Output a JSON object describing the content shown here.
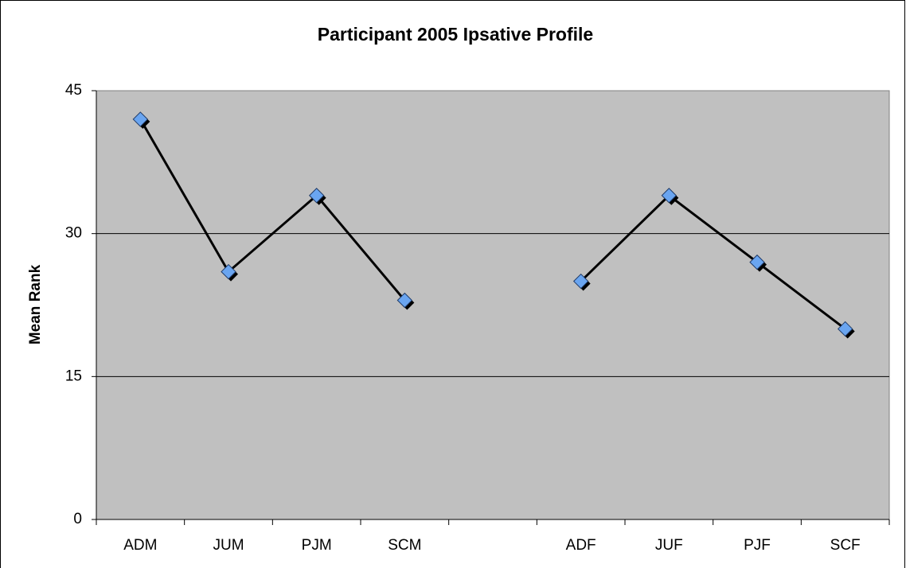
{
  "chart_data": {
    "type": "line",
    "title": "Participant 2005 Ipsative Profile",
    "y_label": "Mean Rank",
    "categories": [
      "ADM",
      "JUM",
      "PJM",
      "SCM",
      null,
      "ADF",
      "JUF",
      "PJF",
      "SCF"
    ],
    "series": [
      {
        "name": "Participant 2005",
        "color": "#6aa5f0",
        "values": [
          42,
          26,
          34,
          23,
          null,
          25,
          34,
          27,
          20
        ]
      }
    ],
    "ylim": [
      0,
      45
    ],
    "yticks": [
      0,
      15,
      30,
      45
    ],
    "grid": true
  }
}
